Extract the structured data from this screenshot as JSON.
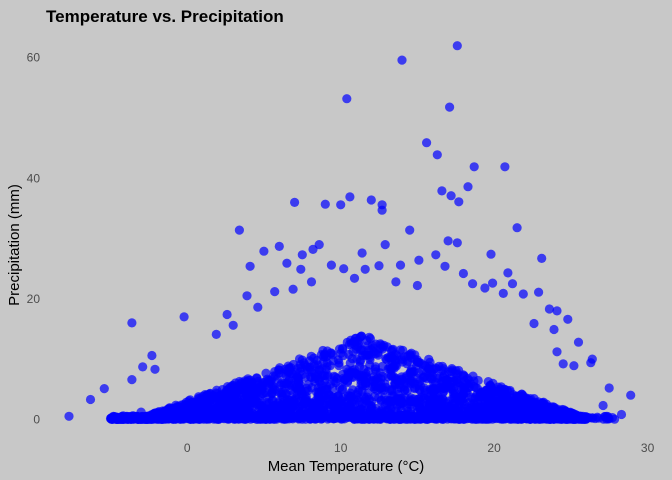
{
  "chart_data": {
    "type": "scatter",
    "title": "Temperature vs. Precipitation",
    "xlabel": "Mean Temperature (°C)",
    "ylabel": "Precipitation (mm)",
    "xlim": [
      -8,
      29
    ],
    "ylim": [
      -1,
      63
    ],
    "xticks": [
      0,
      10,
      20,
      30
    ],
    "yticks": [
      0,
      20,
      40,
      60
    ],
    "xtick_labels": [
      "0",
      "10",
      "20",
      "30"
    ],
    "ytick_labels": [
      "0",
      "20",
      "40",
      "60"
    ],
    "grid": false,
    "legend": "none",
    "point_color": "#0000ff",
    "point_opacity": 0.7,
    "background_color": "#c8c8c8",
    "points": [
      [
        17.6,
        62.0
      ],
      [
        14.0,
        59.6
      ],
      [
        10.4,
        53.2
      ],
      [
        17.1,
        51.8
      ],
      [
        15.6,
        45.9
      ],
      [
        16.3,
        43.9
      ],
      [
        20.7,
        41.9
      ],
      [
        18.7,
        41.9
      ],
      [
        16.6,
        37.9
      ],
      [
        18.3,
        38.6
      ],
      [
        10.6,
        36.9
      ],
      [
        12.7,
        35.6
      ],
      [
        17.2,
        37.1
      ],
      [
        9.0,
        35.7
      ],
      [
        10.0,
        35.6
      ],
      [
        7.0,
        36.0
      ],
      [
        12.0,
        36.4
      ],
      [
        17.7,
        36.1
      ],
      [
        12.7,
        34.7
      ],
      [
        3.4,
        31.4
      ],
      [
        14.5,
        31.4
      ],
      [
        21.5,
        31.8
      ],
      [
        17.6,
        29.3
      ],
      [
        17.0,
        29.6
      ],
      [
        16.2,
        27.3
      ],
      [
        19.8,
        27.4
      ],
      [
        23.1,
        26.7
      ],
      [
        7.5,
        27.3
      ],
      [
        11.4,
        27.6
      ],
      [
        8.2,
        28.2
      ],
      [
        6.0,
        28.7
      ],
      [
        5.0,
        27.9
      ],
      [
        8.6,
        29.0
      ],
      [
        12.9,
        29.0
      ],
      [
        10.2,
        25.0
      ],
      [
        20.9,
        24.3
      ],
      [
        21.9,
        20.8
      ],
      [
        22.9,
        21.1
      ],
      [
        23.6,
        18.3
      ],
      [
        24.1,
        18.0
      ],
      [
        19.4,
        21.8
      ],
      [
        19.9,
        22.6
      ],
      [
        20.6,
        20.9
      ],
      [
        22.6,
        15.9
      ],
      [
        23.9,
        14.9
      ],
      [
        25.2,
        8.9
      ],
      [
        26.4,
        10.0
      ],
      [
        24.1,
        11.2
      ],
      [
        24.5,
        9.2
      ],
      [
        -3.6,
        16.0
      ],
      [
        -0.2,
        17.0
      ],
      [
        -2.3,
        10.6
      ],
      [
        -2.9,
        8.7
      ],
      [
        -2.1,
        8.3
      ],
      [
        -3.6,
        6.6
      ],
      [
        -5.4,
        5.1
      ],
      [
        -6.3,
        3.3
      ],
      [
        -7.7,
        0.5
      ],
      [
        -4.8,
        0.4
      ],
      [
        -3.0,
        1.2
      ],
      [
        4.1,
        25.4
      ],
      [
        6.5,
        25.9
      ],
      [
        7.4,
        24.9
      ],
      [
        9.4,
        25.6
      ],
      [
        11.6,
        24.9
      ],
      [
        12.5,
        25.5
      ],
      [
        13.9,
        25.6
      ],
      [
        15.1,
        26.4
      ],
      [
        16.8,
        25.4
      ],
      [
        18.0,
        24.2
      ],
      [
        3.9,
        20.5
      ],
      [
        5.7,
        21.2
      ],
      [
        6.9,
        21.6
      ],
      [
        8.1,
        22.8
      ],
      [
        10.9,
        23.4
      ],
      [
        13.6,
        22.8
      ],
      [
        15.0,
        22.2
      ],
      [
        18.6,
        22.5
      ],
      [
        21.2,
        22.5
      ],
      [
        2.6,
        17.4
      ],
      [
        4.6,
        18.6
      ],
      [
        1.9,
        14.1
      ],
      [
        3.0,
        15.6
      ],
      [
        24.8,
        16.6
      ],
      [
        25.5,
        12.8
      ],
      [
        26.3,
        9.4
      ],
      [
        27.5,
        5.2
      ],
      [
        28.9,
        4.0
      ],
      [
        28.3,
        0.8
      ],
      [
        27.1,
        2.3
      ]
    ]
  }
}
